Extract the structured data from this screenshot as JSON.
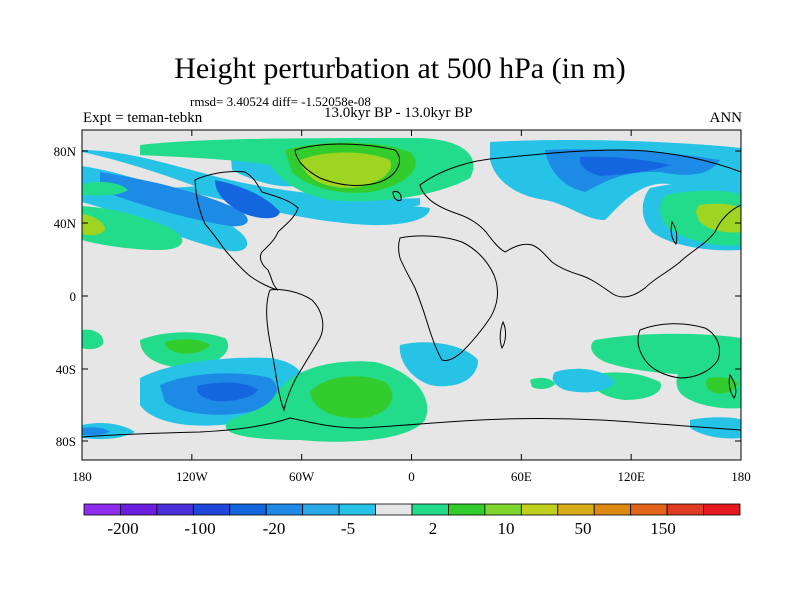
{
  "title": "Height perturbation at 500 hPa (in m)",
  "stats": "rmsd= 3.40524 diff= -1.52058e-08",
  "period": "13.0kyr BP - 13.0kyr BP",
  "experiment": "Expt = teman-tebkn",
  "season": "ANN",
  "y_axis_labels": [
    "80N",
    "40N",
    "0",
    "40S",
    "80S"
  ],
  "x_axis_labels": [
    "180",
    "120W",
    "60W",
    "0",
    "60E",
    "120E",
    "180"
  ],
  "colorbar": {
    "labels": [
      "-200",
      "-100",
      "-20",
      "-5",
      "2",
      "10",
      "50",
      "150"
    ],
    "colors": [
      "#8e2cef",
      "#6a1fe0",
      "#4b2fd8",
      "#2047d9",
      "#1466df",
      "#1d8ae6",
      "#2aa9e6",
      "#27c3e6",
      "#e6e6e6",
      "#22dc8c",
      "#33cc2d",
      "#7fd62c",
      "#c0cf1e",
      "#d7ad1a",
      "#dc8a13",
      "#e2631a",
      "#e23a22",
      "#e51a20"
    ]
  },
  "fill_colors": {
    "neutral": "#e6e6e6",
    "light_blue": "#27c3e6",
    "mid_blue": "#1d8ae6",
    "deep_blue": "#1466df",
    "light_green": "#22dc8c",
    "green": "#33cc2d",
    "yellow_green": "#9fd423"
  }
}
